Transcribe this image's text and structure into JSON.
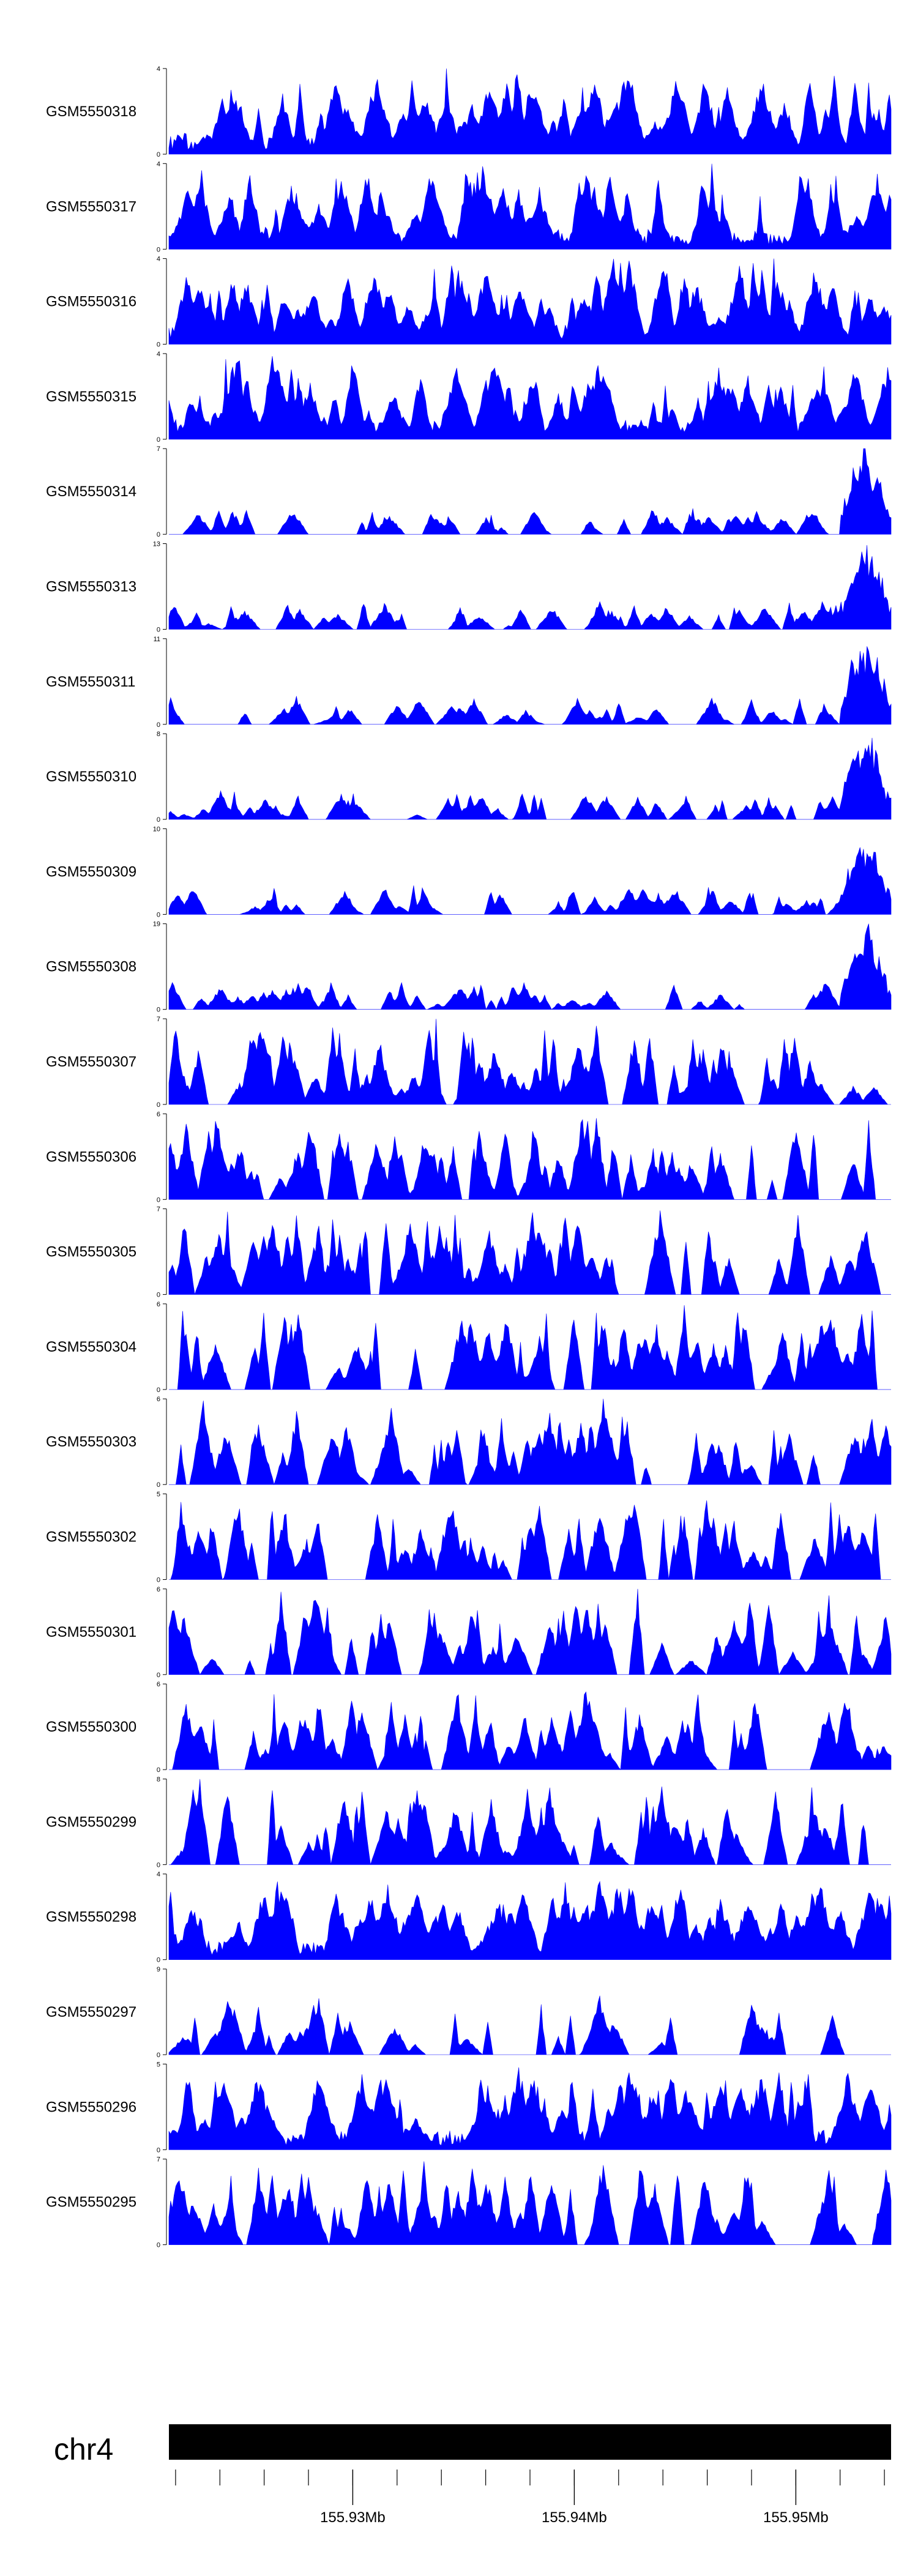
{
  "colors": {
    "signal": "#0000ff",
    "axis": "#000000",
    "ideogram": "#000000"
  },
  "chart_data": {
    "type": "area",
    "chromosome": "chr4",
    "x_range_mb": [
      155.9217,
      155.9543
    ],
    "ticks": [
      {
        "position_mb": 155.93,
        "label": "155.93Mb"
      },
      {
        "position_mb": 155.94,
        "label": "155.94Mb"
      },
      {
        "position_mb": 155.95,
        "label": "155.95Mb"
      }
    ],
    "minor_tick_step_mb": 0.002,
    "tracks": [
      {
        "name": "GSM5550318",
        "ymax": 4,
        "ymin": 0,
        "profile": "dense",
        "seed": 318
      },
      {
        "name": "GSM5550317",
        "ymax": 4,
        "ymin": 0,
        "profile": "dense",
        "seed": 317
      },
      {
        "name": "GSM5550316",
        "ymax": 4,
        "ymin": 0,
        "profile": "dense",
        "seed": 316
      },
      {
        "name": "GSM5550315",
        "ymax": 4,
        "ymin": 0,
        "profile": "dense",
        "seed": 315
      },
      {
        "name": "GSM5550314",
        "ymax": 7,
        "ymin": 0,
        "profile": "rightpeak",
        "seed": 314
      },
      {
        "name": "GSM5550313",
        "ymax": 13,
        "ymin": 0,
        "profile": "rightpeak",
        "seed": 313
      },
      {
        "name": "GSM5550311",
        "ymax": 11,
        "ymin": 0,
        "profile": "rightpeak",
        "seed": 311
      },
      {
        "name": "GSM5550310",
        "ymax": 8,
        "ymin": 0,
        "profile": "rightpeak",
        "seed": 310
      },
      {
        "name": "GSM5550309",
        "ymax": 10,
        "ymin": 0,
        "profile": "rightpeak",
        "seed": 309
      },
      {
        "name": "GSM5550308",
        "ymax": 19,
        "ymin": 0,
        "profile": "rightpeak",
        "seed": 308
      },
      {
        "name": "GSM5550307",
        "ymax": 7,
        "ymin": 0,
        "profile": "spiky",
        "seed": 307
      },
      {
        "name": "GSM5550306",
        "ymax": 6,
        "ymin": 0,
        "profile": "spiky",
        "seed": 306
      },
      {
        "name": "GSM5550305",
        "ymax": 7,
        "ymin": 0,
        "profile": "spiky",
        "seed": 305
      },
      {
        "name": "GSM5550304",
        "ymax": 6,
        "ymin": 0,
        "profile": "spiky",
        "seed": 304
      },
      {
        "name": "GSM5550303",
        "ymax": 6,
        "ymin": 0,
        "profile": "spiky",
        "seed": 303
      },
      {
        "name": "GSM5550302",
        "ymax": 5,
        "ymin": 0,
        "profile": "spiky",
        "seed": 302
      },
      {
        "name": "GSM5550301",
        "ymax": 6,
        "ymin": 0,
        "profile": "spiky",
        "seed": 301
      },
      {
        "name": "GSM5550300",
        "ymax": 6,
        "ymin": 0,
        "profile": "spiky",
        "seed": 300
      },
      {
        "name": "GSM5550299",
        "ymax": 8,
        "ymin": 0,
        "profile": "spiky",
        "seed": 299
      },
      {
        "name": "GSM5550298",
        "ymax": 4,
        "ymin": 0,
        "profile": "dense",
        "seed": 298
      },
      {
        "name": "GSM5550297",
        "ymax": 9,
        "ymin": 0,
        "profile": "sparse",
        "seed": 297
      },
      {
        "name": "GSM5550296",
        "ymax": 5,
        "ymin": 0,
        "profile": "dense",
        "seed": 296
      },
      {
        "name": "GSM5550295",
        "ymax": 7,
        "ymin": 0,
        "profile": "spiky",
        "seed": 295
      }
    ]
  }
}
